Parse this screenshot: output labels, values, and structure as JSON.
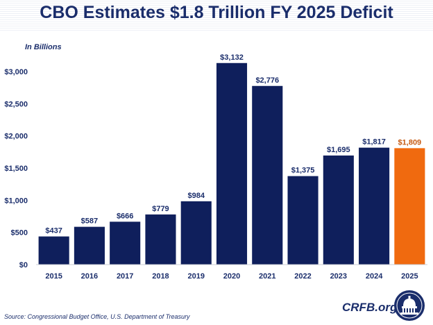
{
  "title": "CBO Estimates $1.8 Trillion FY 2025 Deficit",
  "unit_label": "In Billions",
  "source": "Source: Congressional Budget Office, U.S. Department of Treasury",
  "brand": "CRFB.org",
  "seal_icon": "capitol-dome-seal",
  "colors": {
    "title": "#1a2d6b",
    "bar": "#0f1f5c",
    "highlight": "#f06a0f",
    "highlight_label": "#c65a12",
    "axis_text": "#1a2d6b"
  },
  "chart_data": {
    "type": "bar",
    "categories": [
      "2015",
      "2016",
      "2017",
      "2018",
      "2019",
      "2020",
      "2021",
      "2022",
      "2023",
      "2024",
      "2025"
    ],
    "values": [
      437,
      587,
      666,
      779,
      984,
      3132,
      2776,
      1375,
      1695,
      1817,
      1809
    ],
    "data_labels": [
      "$437",
      "$587",
      "$666",
      "$779",
      "$984",
      "$3,132",
      "$2,776",
      "$1,375",
      "$1,695",
      "$1,817",
      "$1,809"
    ],
    "highlighted_category": "2025",
    "title": "CBO Estimates $1.8 Trillion FY 2025 Deficit",
    "xlabel": "",
    "ylabel": "In Billions",
    "ylim": [
      0,
      3000
    ],
    "yticks": [
      0,
      500,
      1000,
      1500,
      2000,
      2500,
      3000
    ],
    "ytick_labels": [
      "$0",
      "$500",
      "$1,000",
      "$1,500",
      "$2,000",
      "$2,500",
      "$3,000"
    ],
    "grid": false,
    "legend": "none"
  }
}
